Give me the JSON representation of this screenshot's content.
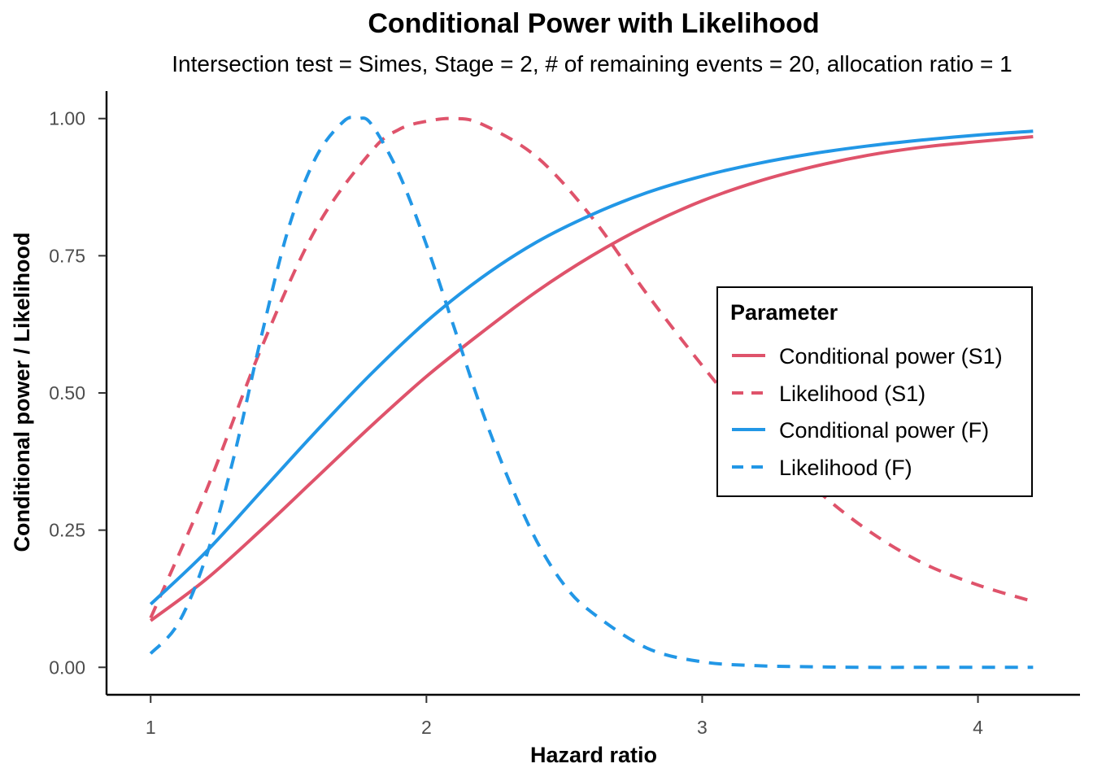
{
  "chart_data": {
    "type": "line",
    "title": "Conditional Power with Likelihood",
    "subtitle": "Intersection test = Simes, Stage = 2, # of remaining events = 20, allocation ratio = 1",
    "xlabel": "Hazard ratio",
    "ylabel": "Conditional power / Likelihood",
    "xlim": [
      0.84,
      4.37
    ],
    "ylim": [
      -0.05,
      1.05
    ],
    "x_ticks": [
      1,
      2,
      3,
      4
    ],
    "x_tick_labels": [
      "1",
      "2",
      "3",
      "4"
    ],
    "y_ticks": [
      0,
      0.25,
      0.5,
      0.75,
      1
    ],
    "y_tick_labels": [
      "0.00",
      "0.25",
      "0.50",
      "0.75",
      "1.00"
    ],
    "grid": false,
    "legend": {
      "title": "Parameter",
      "position": "right"
    },
    "series": [
      {
        "name": "Conditional power (S1)",
        "color": "#DF536B",
        "dash": "solid",
        "x": [
          1.0,
          1.2,
          1.4,
          1.6,
          1.8,
          2.0,
          2.2,
          2.4,
          2.6,
          2.8,
          3.0,
          3.2,
          3.4,
          3.6,
          3.8,
          4.0,
          4.2
        ],
        "y": [
          0.085,
          0.16,
          0.25,
          0.345,
          0.44,
          0.53,
          0.61,
          0.685,
          0.75,
          0.805,
          0.85,
          0.885,
          0.912,
          0.933,
          0.948,
          0.958,
          0.967
        ]
      },
      {
        "name": "Likelihood (S1)",
        "color": "#DF536B",
        "dash": "dashed",
        "x": [
          1.0,
          1.2,
          1.4,
          1.6,
          1.8,
          1.9,
          2.0,
          2.1,
          2.2,
          2.4,
          2.6,
          2.8,
          3.0,
          3.2,
          3.4,
          3.6,
          3.8,
          4.0,
          4.2
        ],
        "y": [
          0.09,
          0.32,
          0.58,
          0.8,
          0.94,
          0.98,
          0.995,
          1.0,
          0.99,
          0.93,
          0.82,
          0.68,
          0.55,
          0.43,
          0.33,
          0.25,
          0.19,
          0.15,
          0.12
        ]
      },
      {
        "name": "Conditional power (F)",
        "color": "#2297E6",
        "dash": "solid",
        "x": [
          1.0,
          1.2,
          1.4,
          1.6,
          1.8,
          2.0,
          2.2,
          2.4,
          2.6,
          2.8,
          3.0,
          3.2,
          3.4,
          3.6,
          3.8,
          4.0,
          4.2
        ],
        "y": [
          0.115,
          0.21,
          0.32,
          0.43,
          0.535,
          0.63,
          0.71,
          0.775,
          0.825,
          0.865,
          0.895,
          0.918,
          0.936,
          0.95,
          0.961,
          0.97,
          0.977
        ]
      },
      {
        "name": "Likelihood (F)",
        "color": "#2297E6",
        "dash": "dashed",
        "x": [
          1.0,
          1.1,
          1.2,
          1.3,
          1.4,
          1.5,
          1.6,
          1.7,
          1.75,
          1.8,
          1.9,
          2.0,
          2.1,
          2.2,
          2.3,
          2.4,
          2.5,
          2.6,
          2.8,
          3.0,
          3.2,
          3.4,
          3.6,
          3.8,
          4.0,
          4.2
        ],
        "y": [
          0.025,
          0.08,
          0.2,
          0.38,
          0.6,
          0.8,
          0.93,
          0.995,
          1.0,
          0.99,
          0.9,
          0.77,
          0.62,
          0.47,
          0.34,
          0.23,
          0.15,
          0.1,
          0.035,
          0.01,
          0.003,
          0.001,
          0.0,
          0.0,
          0.0,
          0.0
        ]
      }
    ]
  }
}
